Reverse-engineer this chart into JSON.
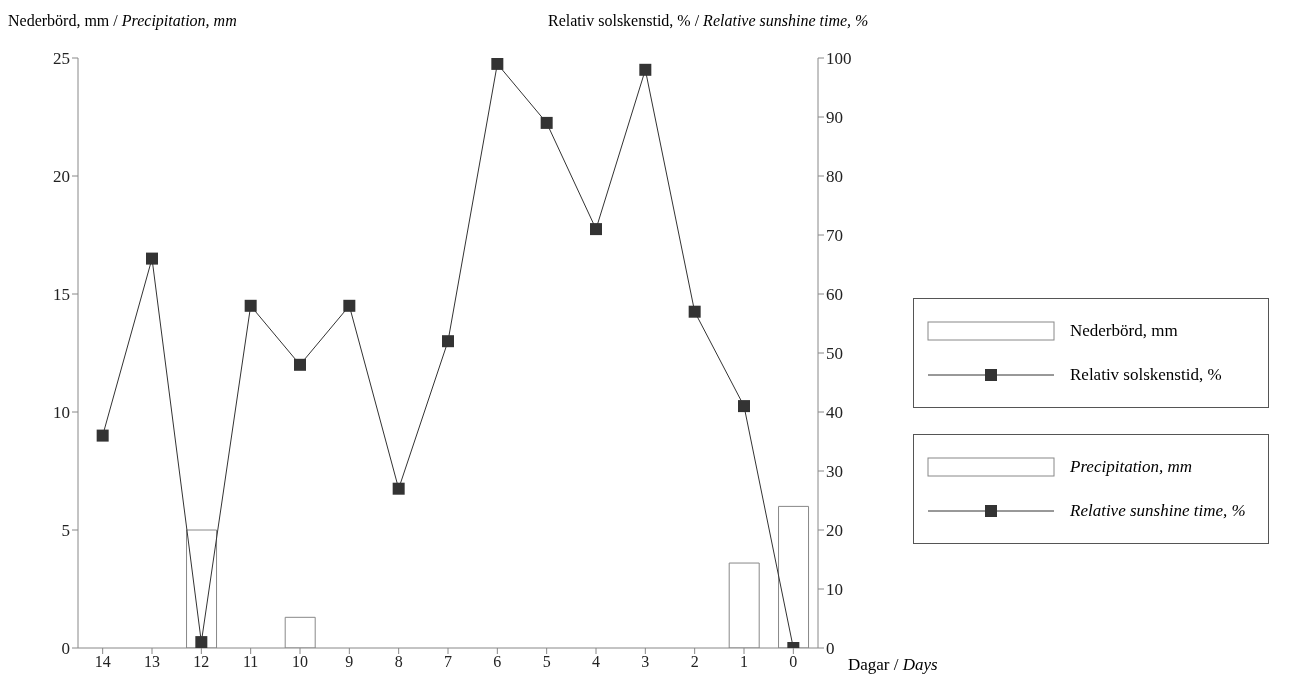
{
  "chart_data": {
    "type": "bar",
    "ylabel": "Nederbörd, mm / Precipitation, mm",
    "y2label": "Relativ solskenstid, % / Relative sunshine time, %",
    "xlabel": "Dagar / Days",
    "categories": [
      "14",
      "13",
      "12",
      "11",
      "10",
      "9",
      "8",
      "7",
      "6",
      "5",
      "4",
      "3",
      "2",
      "1",
      "0"
    ],
    "series": [
      {
        "name": "Nederbörd, mm",
        "color": "#ffffff",
        "values": [
          0,
          0,
          5,
          0,
          1.3,
          0,
          0,
          0,
          0,
          0,
          0,
          0,
          0,
          3.6,
          6
        ]
      },
      {
        "name": "Relativ solskenstid, %",
        "type": "line",
        "axis": "y2",
        "color": "#333333",
        "marker": "square",
        "values": [
          36,
          66,
          1,
          58,
          48,
          58,
          27,
          52,
          99,
          89,
          71,
          98,
          57,
          41,
          0
        ]
      }
    ],
    "annotations": [
      "Precipitation, mm",
      "Relative sunshine time, %"
    ],
    "ylim": [
      0,
      25
    ],
    "yticks": [
      0,
      5,
      10,
      15,
      20,
      25
    ],
    "y2lim": [
      0,
      100
    ],
    "y2ticks": [
      0,
      10,
      20,
      30,
      40,
      50,
      60,
      70,
      80,
      90,
      100
    ],
    "legend": "right",
    "grid": false
  }
}
